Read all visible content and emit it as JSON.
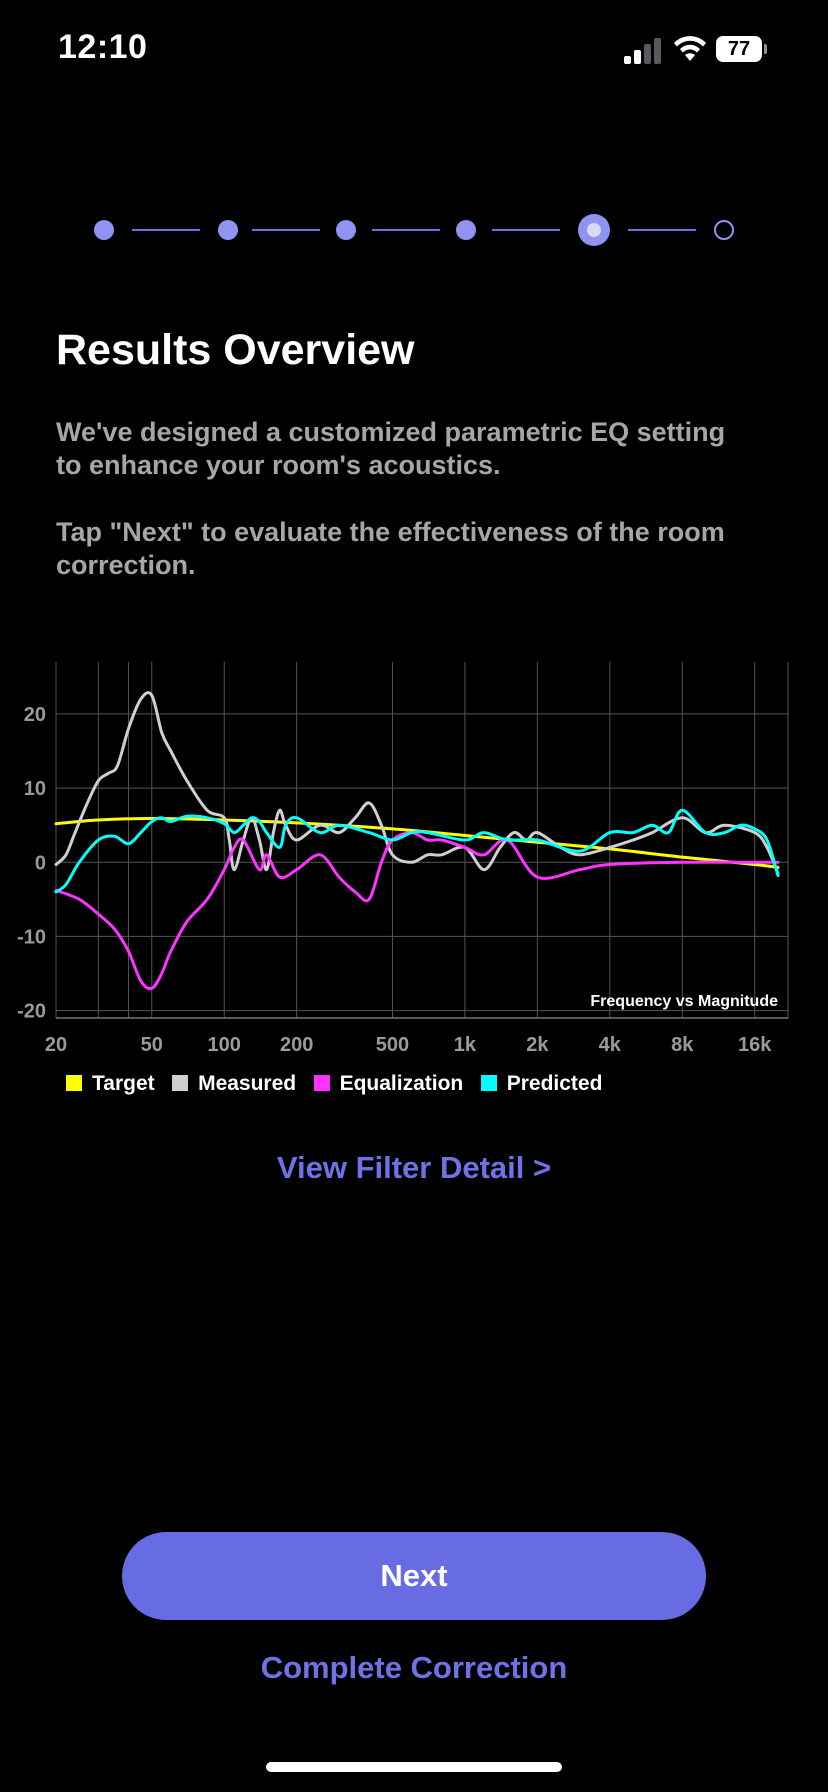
{
  "status_bar": {
    "time": "12:10",
    "battery": "77"
  },
  "stepper": {
    "total_steps": 6,
    "current_step": 5
  },
  "page": {
    "title": "Results Overview",
    "description_1": "We've designed a customized parametric EQ setting to enhance your room's acoustics.",
    "description_2": "Tap \"Next\" to evaluate the effectiveness of the room correction."
  },
  "chart_data": {
    "type": "line",
    "title": "Frequency vs Magnitude",
    "xscale": "log",
    "xlim": [
      20,
      22000
    ],
    "ylim": [
      -21,
      27
    ],
    "x_tick_values": [
      20,
      50,
      100,
      200,
      500,
      1000,
      2000,
      4000,
      8000,
      16000
    ],
    "x_tick_labels": [
      "20",
      "50",
      "100",
      "200",
      "500",
      "1k",
      "2k",
      "4k",
      "8k",
      "16k"
    ],
    "y_tick_values": [
      20,
      10,
      0,
      -10,
      -20
    ],
    "y_tick_labels": [
      "20",
      "10",
      "0",
      "-10",
      "-20"
    ],
    "grid": true,
    "legend_position": "bottom",
    "series": [
      {
        "name": "Target",
        "color": "#ffff00",
        "points": [
          [
            20,
            5.2
          ],
          [
            30,
            5.7
          ],
          [
            50,
            5.9
          ],
          [
            100,
            5.7
          ],
          [
            200,
            5.3
          ],
          [
            500,
            4.5
          ],
          [
            1000,
            3.6
          ],
          [
            2000,
            2.7
          ],
          [
            4000,
            1.8
          ],
          [
            8000,
            0.7
          ],
          [
            16000,
            -0.3
          ],
          [
            20000,
            -0.7
          ]
        ]
      },
      {
        "name": "Measured",
        "color": "#cfcfcf",
        "points": [
          [
            20,
            -0.3
          ],
          [
            22,
            1
          ],
          [
            24,
            4
          ],
          [
            27,
            8
          ],
          [
            30,
            11
          ],
          [
            33,
            12
          ],
          [
            36,
            13
          ],
          [
            40,
            18
          ],
          [
            45,
            22
          ],
          [
            50,
            22.5
          ],
          [
            55,
            17.5
          ],
          [
            60,
            15
          ],
          [
            70,
            11
          ],
          [
            85,
            7
          ],
          [
            100,
            6
          ],
          [
            105,
            3
          ],
          [
            110,
            -1
          ],
          [
            120,
            3
          ],
          [
            130,
            6
          ],
          [
            140,
            3
          ],
          [
            150,
            -1
          ],
          [
            160,
            4
          ],
          [
            170,
            7
          ],
          [
            180,
            5
          ],
          [
            200,
            3
          ],
          [
            250,
            5
          ],
          [
            300,
            4
          ],
          [
            350,
            6
          ],
          [
            400,
            8
          ],
          [
            450,
            5
          ],
          [
            500,
            1
          ],
          [
            600,
            0
          ],
          [
            700,
            1
          ],
          [
            800,
            1
          ],
          [
            1000,
            2
          ],
          [
            1200,
            -1
          ],
          [
            1400,
            2
          ],
          [
            1600,
            4
          ],
          [
            1800,
            3
          ],
          [
            2000,
            4
          ],
          [
            2500,
            2
          ],
          [
            3000,
            1
          ],
          [
            4000,
            2
          ],
          [
            5000,
            3
          ],
          [
            6000,
            4
          ],
          [
            8000,
            6
          ],
          [
            10000,
            4
          ],
          [
            12000,
            5
          ],
          [
            16000,
            4
          ],
          [
            18000,
            2
          ],
          [
            20000,
            -1.5
          ]
        ]
      },
      {
        "name": "Equalization",
        "color": "#ff33ff",
        "points": [
          [
            20,
            -3.8
          ],
          [
            25,
            -5
          ],
          [
            30,
            -7
          ],
          [
            35,
            -9
          ],
          [
            40,
            -12
          ],
          [
            45,
            -16
          ],
          [
            50,
            -17
          ],
          [
            55,
            -15
          ],
          [
            60,
            -12
          ],
          [
            70,
            -8
          ],
          [
            85,
            -5
          ],
          [
            100,
            -1
          ],
          [
            110,
            2
          ],
          [
            120,
            3
          ],
          [
            140,
            -1
          ],
          [
            150,
            1
          ],
          [
            170,
            -2
          ],
          [
            200,
            -1
          ],
          [
            250,
            1
          ],
          [
            300,
            -2
          ],
          [
            350,
            -4
          ],
          [
            400,
            -5
          ],
          [
            450,
            0
          ],
          [
            500,
            3
          ],
          [
            600,
            4
          ],
          [
            700,
            3
          ],
          [
            800,
            3
          ],
          [
            1000,
            2
          ],
          [
            1200,
            1
          ],
          [
            1500,
            3
          ],
          [
            2000,
            -2
          ],
          [
            3000,
            -1
          ],
          [
            4000,
            -0.3
          ],
          [
            8000,
            0
          ],
          [
            16000,
            0
          ],
          [
            20000,
            0
          ]
        ]
      },
      {
        "name": "Predicted",
        "color": "#00ffff",
        "points": [
          [
            20,
            -4
          ],
          [
            22,
            -3
          ],
          [
            25,
            0
          ],
          [
            30,
            3
          ],
          [
            35,
            3.5
          ],
          [
            40,
            2.5
          ],
          [
            45,
            4
          ],
          [
            50,
            5.5
          ],
          [
            55,
            6
          ],
          [
            60,
            5.5
          ],
          [
            70,
            6.2
          ],
          [
            85,
            6
          ],
          [
            100,
            5.2
          ],
          [
            110,
            4
          ],
          [
            120,
            5
          ],
          [
            130,
            6
          ],
          [
            140,
            5.5
          ],
          [
            150,
            4
          ],
          [
            170,
            2
          ],
          [
            180,
            5
          ],
          [
            200,
            6
          ],
          [
            250,
            4
          ],
          [
            300,
            5
          ],
          [
            400,
            4
          ],
          [
            500,
            3
          ],
          [
            600,
            4
          ],
          [
            700,
            4
          ],
          [
            1000,
            3
          ],
          [
            1200,
            4
          ],
          [
            1500,
            3
          ],
          [
            2000,
            3
          ],
          [
            3000,
            1.5
          ],
          [
            4000,
            4
          ],
          [
            5000,
            4
          ],
          [
            6000,
            5
          ],
          [
            7000,
            4
          ],
          [
            8000,
            7
          ],
          [
            10000,
            4
          ],
          [
            12000,
            4
          ],
          [
            14000,
            5
          ],
          [
            16000,
            4.5
          ],
          [
            18000,
            3
          ],
          [
            20000,
            -1.8
          ]
        ]
      }
    ]
  },
  "links": {
    "filter_detail": "View Filter Detail >",
    "complete_correction": "Complete Correction"
  },
  "buttons": {
    "next": "Next"
  }
}
